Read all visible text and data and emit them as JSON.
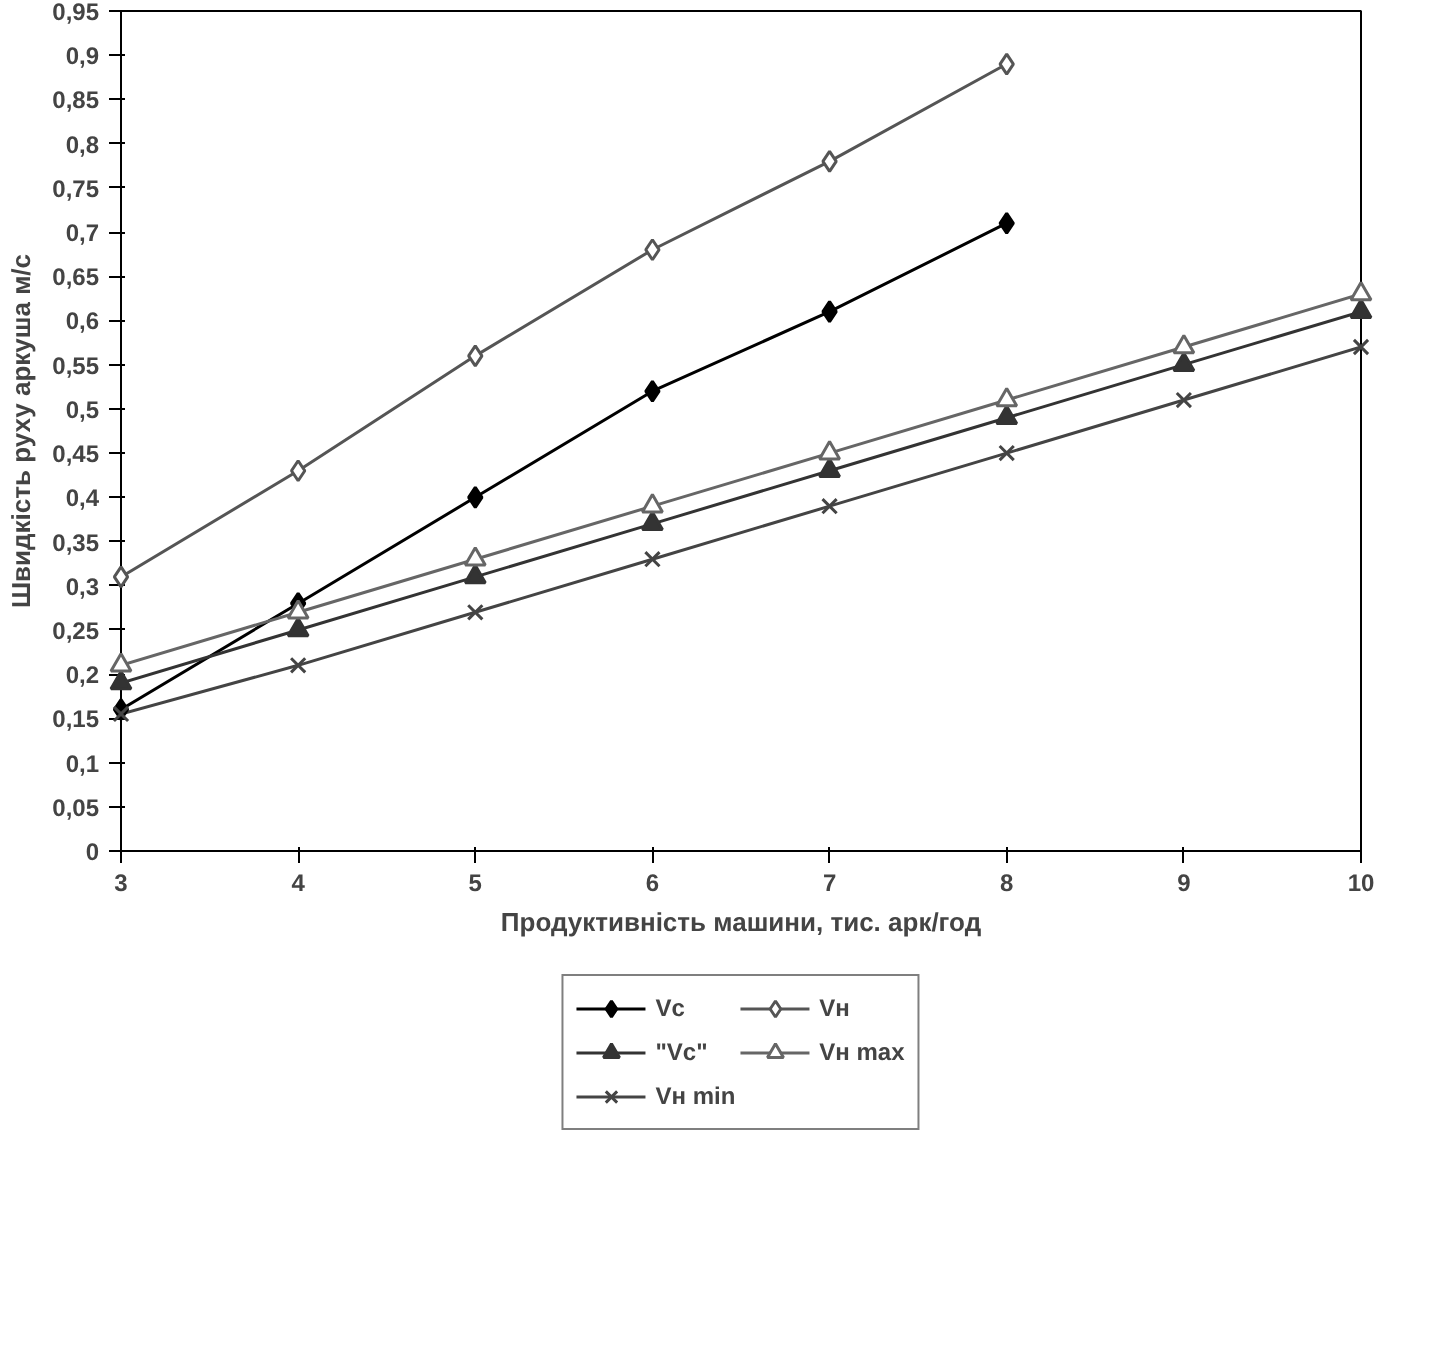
{
  "chart_data": {
    "type": "line",
    "xlabel": "Продуктивність машини, тис. арк/год",
    "ylabel": "Швидкість руху аркуша м/с",
    "xlim": [
      3,
      10
    ],
    "xticks": [
      3,
      4,
      5,
      6,
      7,
      8,
      9,
      10
    ],
    "ylim": [
      0,
      0.95
    ],
    "yticks": [
      0,
      {
        "value": 0.05,
        "label": "0,05"
      },
      {
        "value": 0.1,
        "label": "0,1"
      },
      {
        "value": 0.15,
        "label": "0,15"
      },
      {
        "value": 0.2,
        "label": "0,2"
      },
      {
        "value": 0.25,
        "label": "0,25"
      },
      {
        "value": 0.3,
        "label": "0,3"
      },
      {
        "value": 0.35,
        "label": "0,35"
      },
      {
        "value": 0.4,
        "label": "0,4"
      },
      {
        "value": 0.45,
        "label": "0,45"
      },
      {
        "value": 0.5,
        "label": "0,5"
      },
      {
        "value": 0.55,
        "label": "0,55"
      },
      {
        "value": 0.6,
        "label": "0,6"
      },
      {
        "value": 0.65,
        "label": "0,65"
      },
      {
        "value": 0.7,
        "label": "0,7"
      },
      {
        "value": 0.75,
        "label": "0,75"
      },
      {
        "value": 0.8,
        "label": "0,8"
      },
      {
        "value": 0.85,
        "label": "0,85"
      },
      {
        "value": 0.9,
        "label": "0,9"
      },
      {
        "value": 0.95,
        "label": "0,95"
      }
    ],
    "grid": false,
    "legend": "bottom",
    "line_style": "solid",
    "series": [
      {
        "name": "Vc",
        "color": "#000000",
        "marker": "diamond",
        "x": [
          3,
          4,
          5,
          6,
          7,
          8
        ],
        "values": [
          0.16,
          0.28,
          0.4,
          0.52,
          0.61,
          0.71
        ]
      },
      {
        "name": "Vн",
        "color": "#555555",
        "marker": "diamond",
        "x": [
          3,
          4,
          5,
          6,
          7,
          8
        ],
        "values": [
          0.31,
          0.43,
          0.56,
          0.68,
          0.78,
          0.89
        ]
      },
      {
        "name": "\"Vc\"",
        "color": "#333333",
        "marker": "triangle",
        "x": [
          3,
          4,
          5,
          6,
          7,
          8,
          9,
          10
        ],
        "values": [
          0.19,
          0.25,
          0.31,
          0.37,
          0.43,
          0.49,
          0.55,
          0.61
        ]
      },
      {
        "name": "Vн max",
        "color": "#666666",
        "marker": "triangle",
        "x": [
          3,
          4,
          5,
          6,
          7,
          8,
          9,
          10
        ],
        "values": [
          0.21,
          0.27,
          0.33,
          0.39,
          0.45,
          0.51,
          0.57,
          0.63
        ]
      },
      {
        "name": "Vн min",
        "color": "#444444",
        "marker": "cross",
        "x": [
          3,
          4,
          5,
          6,
          7,
          8,
          9,
          10
        ],
        "values": [
          0.155,
          0.21,
          0.27,
          0.33,
          0.39,
          0.45,
          0.51,
          0.57
        ]
      }
    ]
  }
}
